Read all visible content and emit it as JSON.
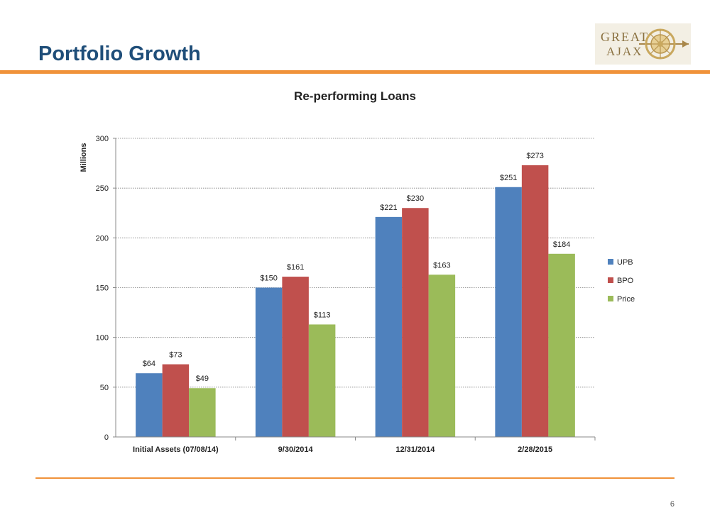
{
  "header": {
    "title": "Portfolio Growth"
  },
  "logo": {
    "line1": "GREAT",
    "line2": "AJAX",
    "icon": "sun-compass-arrow-icon"
  },
  "footer": {
    "page_number": "6"
  },
  "colors": {
    "title": "#1f4e79",
    "rule": "#f0923a",
    "UPB": "#4f81bd",
    "BPO": "#c0504d",
    "Price": "#9bbb59"
  },
  "chart_data": {
    "type": "bar",
    "title": "Re-performing Loans",
    "ylabel": "Millions",
    "xlabel": "",
    "ylim": [
      0,
      300
    ],
    "yticks": [
      0,
      50,
      100,
      150,
      200,
      250,
      300
    ],
    "grid": true,
    "legend_position": "right",
    "categories": [
      "Initial Assets (07/08/14)",
      "9/30/2014",
      "12/31/2014",
      "2/28/2015"
    ],
    "series": [
      {
        "name": "UPB",
        "values": [
          64,
          150,
          221,
          251
        ],
        "labels": [
          "$64",
          "$150",
          "$221",
          "$251"
        ]
      },
      {
        "name": "BPO",
        "values": [
          73,
          161,
          230,
          273
        ],
        "labels": [
          "$73",
          "$161",
          "$230",
          "$273"
        ]
      },
      {
        "name": "Price",
        "values": [
          49,
          113,
          163,
          184
        ],
        "labels": [
          "$49",
          "$113",
          "$163",
          "$184"
        ]
      }
    ]
  }
}
